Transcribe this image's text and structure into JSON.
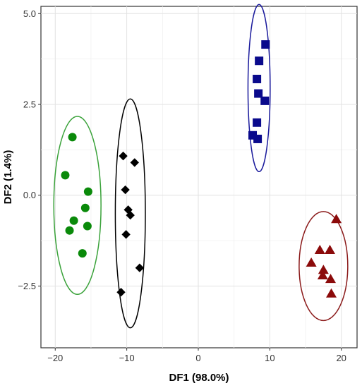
{
  "chart_data": {
    "type": "scatter",
    "xlabel": "DF1 (98.0%)",
    "ylabel": "DF2 (1.4%)",
    "xlim": [
      -22,
      22.2
    ],
    "ylim": [
      -4.2,
      5.2
    ],
    "grid": true,
    "legend": "none",
    "x_ticks": [
      -20,
      -10,
      0,
      10,
      20
    ],
    "x_tick_labels": [
      "−20",
      "−10",
      "0",
      "10",
      "20"
    ],
    "y_ticks": [
      -2.5,
      0.0,
      2.5,
      5.0
    ],
    "y_tick_labels": [
      "−2.5",
      "0.0",
      "2.5",
      "5.0"
    ],
    "series": [
      {
        "marker": "circle",
        "color": "#0a8a0a",
        "points": [
          {
            "x": -17.6,
            "y": 1.6
          },
          {
            "x": -18.6,
            "y": 0.55
          },
          {
            "x": -15.4,
            "y": 0.1
          },
          {
            "x": -15.8,
            "y": -0.35
          },
          {
            "x": -17.4,
            "y": -0.7
          },
          {
            "x": -15.5,
            "y": -0.85
          },
          {
            "x": -18.0,
            "y": -0.97
          },
          {
            "x": -16.2,
            "y": -1.6
          }
        ],
        "ellipse": {
          "cx": -16.9,
          "cy": -0.28,
          "rx": 3.3,
          "ry": 2.45,
          "color": "#3aa23a"
        }
      },
      {
        "marker": "diamond",
        "color": "#000000",
        "points": [
          {
            "x": -10.5,
            "y": 1.08
          },
          {
            "x": -8.9,
            "y": 0.9
          },
          {
            "x": -10.2,
            "y": 0.15
          },
          {
            "x": -9.8,
            "y": -0.4
          },
          {
            "x": -9.5,
            "y": -0.55
          },
          {
            "x": -10.1,
            "y": -1.08
          },
          {
            "x": -8.2,
            "y": -2.0
          },
          {
            "x": -10.8,
            "y": -2.67
          }
        ],
        "ellipse": {
          "cx": -9.5,
          "cy": -0.5,
          "rx": 2.1,
          "ry": 3.15,
          "color": "#000000"
        }
      },
      {
        "marker": "square",
        "color": "#0a0a8c",
        "points": [
          {
            "x": 9.4,
            "y": 4.15
          },
          {
            "x": 8.5,
            "y": 3.7
          },
          {
            "x": 8.2,
            "y": 3.2
          },
          {
            "x": 8.4,
            "y": 2.8
          },
          {
            "x": 9.3,
            "y": 2.6
          },
          {
            "x": 8.2,
            "y": 2.0
          },
          {
            "x": 7.6,
            "y": 1.65
          },
          {
            "x": 8.3,
            "y": 1.55
          }
        ],
        "ellipse": {
          "cx": 8.5,
          "cy": 2.95,
          "rx": 1.55,
          "ry": 2.3,
          "color": "#1a1a9c"
        }
      },
      {
        "marker": "triangle",
        "color": "#8b0a0a",
        "points": [
          {
            "x": 19.3,
            "y": -0.65
          },
          {
            "x": 17.0,
            "y": -1.5
          },
          {
            "x": 18.4,
            "y": -1.5
          },
          {
            "x": 15.8,
            "y": -1.85
          },
          {
            "x": 17.5,
            "y": -2.05
          },
          {
            "x": 17.4,
            "y": -2.2
          },
          {
            "x": 18.5,
            "y": -2.3
          },
          {
            "x": 18.6,
            "y": -2.7
          }
        ],
        "ellipse": {
          "cx": 17.5,
          "cy": -1.95,
          "rx": 3.4,
          "ry": 1.5,
          "color": "#8b1a1a"
        }
      }
    ]
  }
}
